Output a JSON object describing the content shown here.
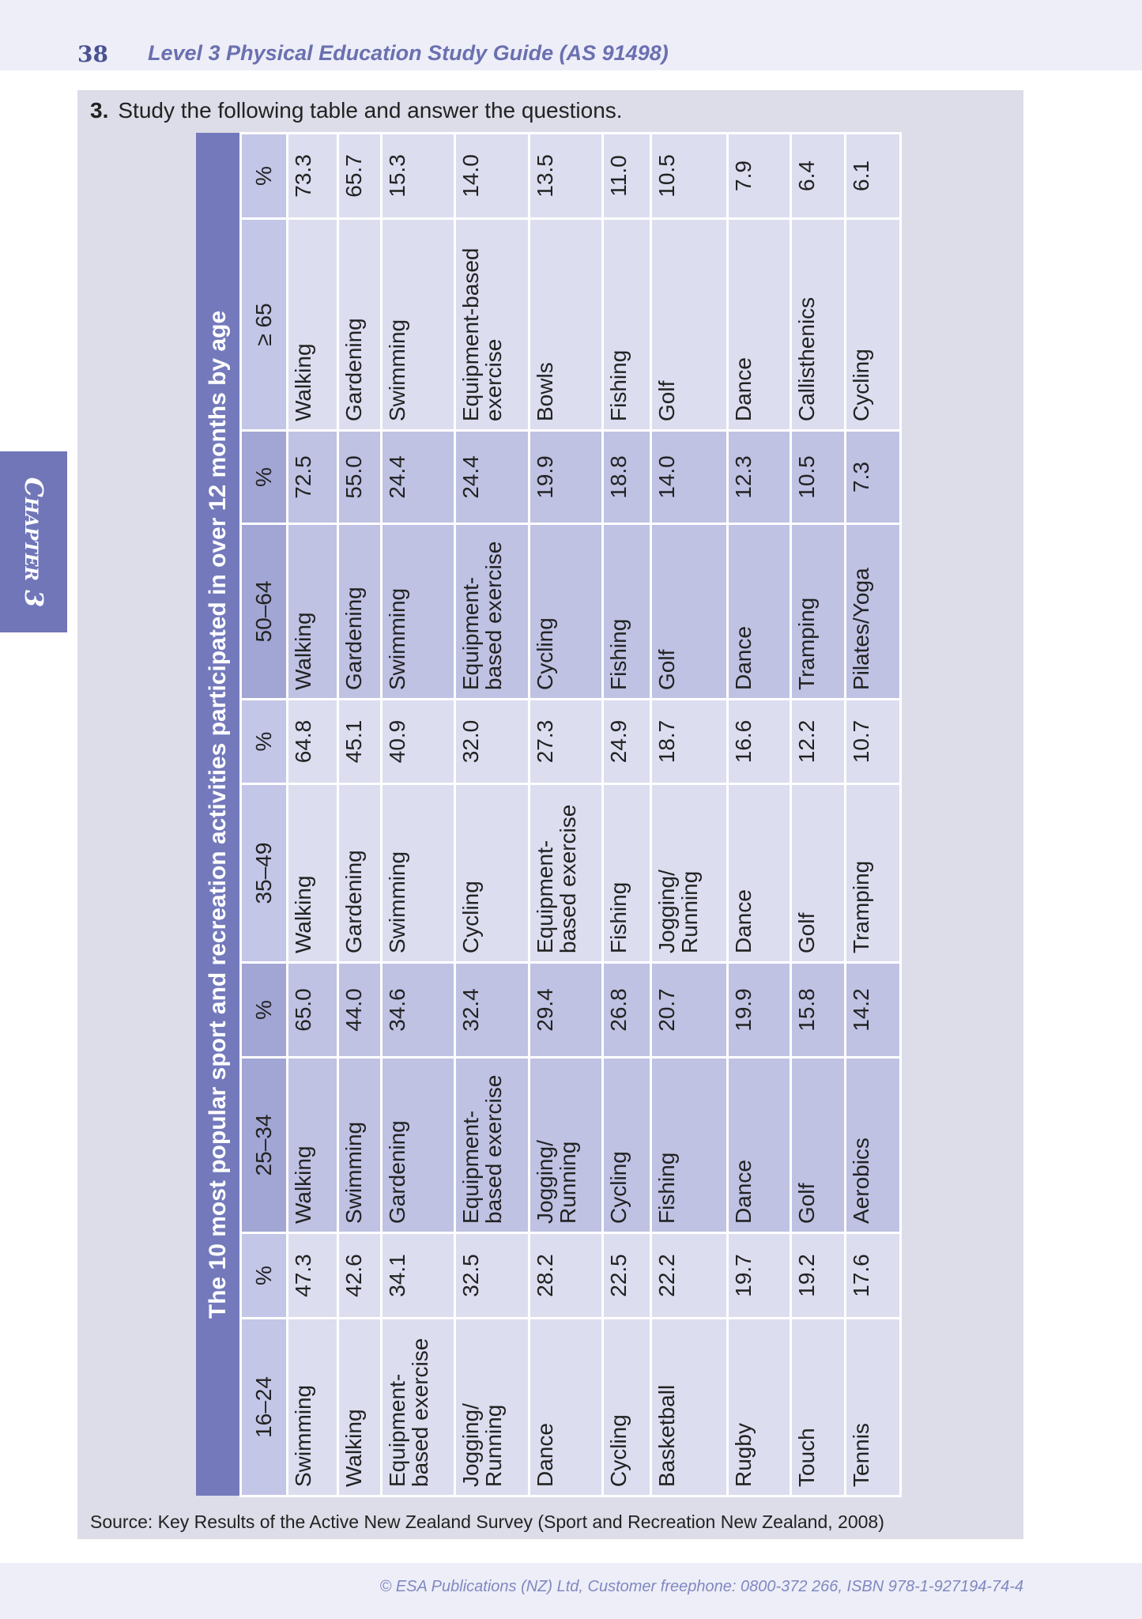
{
  "header": {
    "page_number": "38",
    "title": "Level 3 Physical Education Study Guide (AS 91498)"
  },
  "chapter_tab": "Chapter 3",
  "question": {
    "number": "3.",
    "text": "Study the following table and answer the questions."
  },
  "table": {
    "title": "The 10 most popular sport and recreation activities participated in over 12 months by age",
    "columns": [
      "16–24",
      "%",
      "25–34",
      "%",
      "35–49",
      "%",
      "50–64",
      "%",
      "≥ 65",
      "%"
    ],
    "rows": [
      [
        "Swimming",
        "47.3",
        "Walking",
        "65.0",
        "Walking",
        "64.8",
        "Walking",
        "72.5",
        "Walking",
        "73.3"
      ],
      [
        "Walking",
        "42.6",
        "Swimming",
        "44.0",
        "Gardening",
        "45.1",
        "Gardening",
        "55.0",
        "Gardening",
        "65.7"
      ],
      [
        "Equipment-based exercise",
        "34.1",
        "Gardening",
        "34.6",
        "Swimming",
        "40.9",
        "Swimming",
        "24.4",
        "Swimming",
        "15.3"
      ],
      [
        "Jogging/ Running",
        "32.5",
        "Equipment-based exercise",
        "32.4",
        "Cycling",
        "32.0",
        "Equipment-based exercise",
        "24.4",
        "Equipment-based exercise",
        "14.0"
      ],
      [
        "Dance",
        "28.2",
        "Jogging/ Running",
        "29.4",
        "Equipment-based exercise",
        "27.3",
        "Cycling",
        "19.9",
        "Bowls",
        "13.5"
      ],
      [
        "Cycling",
        "22.5",
        "Cycling",
        "26.8",
        "Fishing",
        "24.9",
        "Fishing",
        "18.8",
        "Fishing",
        "11.0"
      ],
      [
        "Basketball",
        "22.2",
        "Fishing",
        "20.7",
        "Jogging/ Running",
        "18.7",
        "Golf",
        "14.0",
        "Golf",
        "10.5"
      ],
      [
        "Rugby",
        "19.7",
        "Dance",
        "19.9",
        "Dance",
        "16.6",
        "Dance",
        "12.3",
        "Dance",
        "7.9"
      ],
      [
        "Touch",
        "19.2",
        "Golf",
        "15.8",
        "Golf",
        "12.2",
        "Tramping",
        "10.5",
        "Callisthenics",
        "6.4"
      ],
      [
        "Tennis",
        "17.6",
        "Aerobics",
        "14.2",
        "Tramping",
        "10.7",
        "Pilates/Yoga",
        "7.3",
        "Cycling",
        "6.1"
      ]
    ]
  },
  "source": "Source: Key Results of the Active New Zealand Survey (Sport and Recreation New Zealand, 2008)",
  "footer": "© ESA Publications (NZ) Ltd, Customer freephone: 0800-372 266, ISBN 978-1-927194-74-4"
}
